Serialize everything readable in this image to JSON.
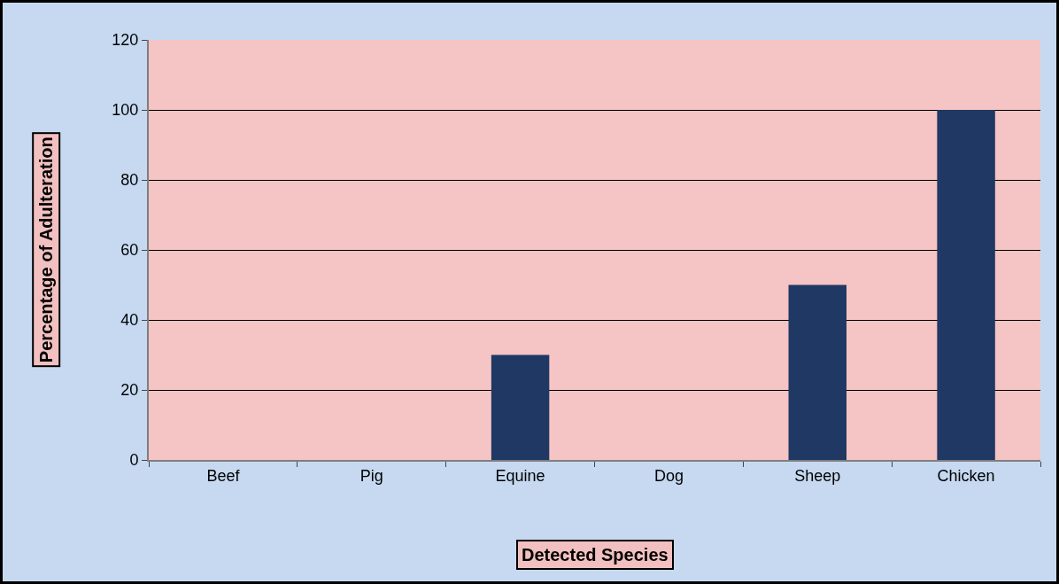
{
  "chart_data": {
    "type": "bar",
    "xlabel": "Detected Species",
    "ylabel": "Percentage of Adulteration",
    "categories": [
      "Beef",
      "Pig",
      "Equine",
      "Dog",
      "Sheep",
      "Chicken"
    ],
    "values": [
      0,
      0,
      30,
      0,
      50,
      100
    ],
    "color": "#1f3864",
    "ylim": [
      0,
      120
    ],
    "yticks": [
      0,
      20,
      40,
      60,
      80,
      100,
      120
    ],
    "grid": "y"
  }
}
